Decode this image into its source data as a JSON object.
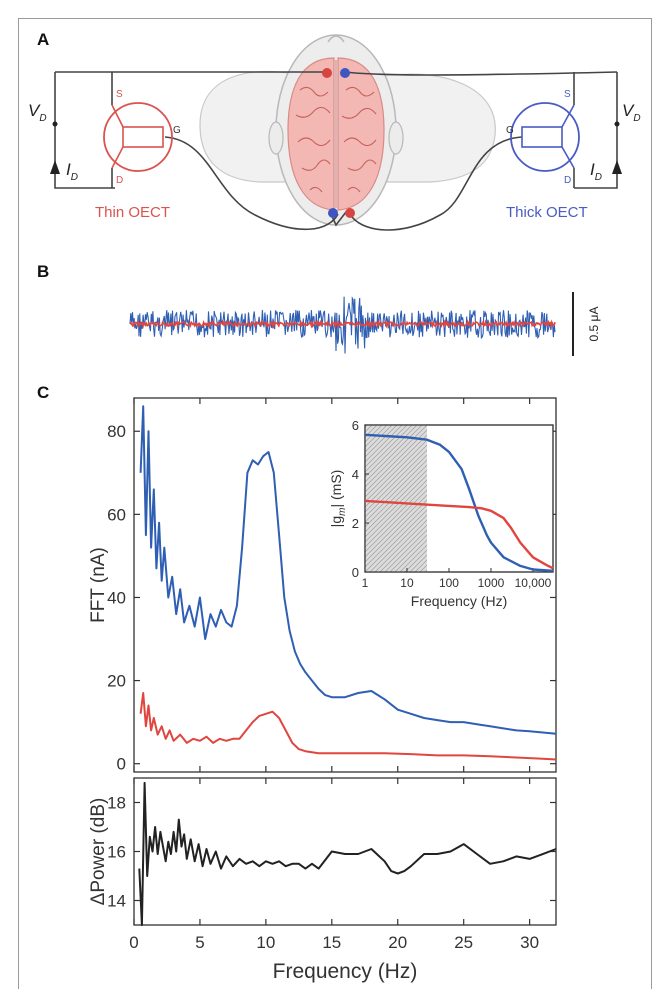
{
  "panels": {
    "a_label": "A",
    "b_label": "B",
    "c_label": "C"
  },
  "schematic": {
    "vd_label": "V",
    "vd_sub": "D",
    "id_label": "I",
    "id_sub": "D",
    "pin_s": "S",
    "pin_g": "G",
    "pin_d": "D",
    "thin_label": "Thin OECT",
    "thick_label": "Thick OECT",
    "colors": {
      "thin": "#d9534f",
      "thick": "#4a5bc4",
      "brain": "#f1b3b0",
      "wire": "#444444"
    }
  },
  "trace": {
    "scale_label": "0.5 μA",
    "colors": {
      "blue": "#2f5fb3",
      "red": "#e0463f"
    }
  },
  "chart_data": [
    {
      "type": "line",
      "xlabel": "",
      "ylabel": "FFT (nA)",
      "xlim": [
        0,
        32
      ],
      "ylim": [
        -2,
        88
      ],
      "yticks": [
        0,
        20,
        40,
        60,
        80
      ],
      "xticks": [
        0,
        5,
        10,
        15,
        20,
        25,
        30
      ],
      "series": [
        {
          "color": "#2f5fb3",
          "x": [
            0.5,
            0.7,
            0.9,
            1.1,
            1.3,
            1.5,
            1.7,
            1.9,
            2.1,
            2.3,
            2.6,
            2.9,
            3.2,
            3.5,
            3.8,
            4.2,
            4.6,
            5.0,
            5.4,
            5.8,
            6.2,
            6.6,
            7.0,
            7.4,
            7.8,
            8.2,
            8.6,
            9.0,
            9.4,
            9.8,
            10.2,
            10.6,
            11.0,
            11.4,
            11.8,
            12.2,
            12.6,
            13.0,
            13.5,
            14.0,
            14.5,
            15.0,
            16.0,
            17.0,
            18.0,
            19.0,
            20.0,
            21.0,
            22.0,
            23.0,
            24.0,
            25.0,
            26.0,
            27.0,
            28.0,
            29.0,
            30.0,
            31.0,
            32.0
          ],
          "y": [
            70,
            86,
            55,
            80,
            52,
            66,
            47,
            58,
            44,
            52,
            40,
            45,
            36,
            42,
            34,
            38,
            33,
            40,
            30,
            36,
            33,
            37,
            34,
            33,
            38,
            52,
            70,
            73,
            72,
            74,
            75,
            70,
            55,
            40,
            32,
            27,
            24,
            22,
            20,
            18,
            16.5,
            16,
            16,
            17,
            17.5,
            15.5,
            13,
            12,
            11,
            10.5,
            10,
            10,
            9.5,
            9,
            8.5,
            8,
            7.8,
            7.5,
            7.2
          ]
        },
        {
          "color": "#e0463f",
          "x": [
            0.5,
            0.7,
            0.9,
            1.1,
            1.3,
            1.5,
            1.8,
            2.1,
            2.4,
            2.7,
            3.0,
            3.5,
            4.0,
            4.5,
            5.0,
            5.5,
            6.0,
            6.5,
            7.0,
            7.5,
            8.0,
            8.5,
            9.0,
            9.5,
            10.0,
            10.5,
            11.0,
            11.5,
            12.0,
            12.5,
            13.0,
            14.0,
            15.0,
            17.0,
            19.0,
            21.0,
            23.0,
            25.0,
            27.0,
            29.0,
            31.0,
            32.0
          ],
          "y": [
            12,
            17,
            9,
            14,
            8,
            11,
            7,
            9,
            6,
            8,
            5.5,
            7,
            5,
            6,
            5.5,
            6.5,
            5,
            6,
            5.5,
            6,
            6,
            8,
            10,
            11.5,
            12,
            12.5,
            11,
            8,
            5,
            3.5,
            3,
            2.5,
            2.5,
            2.5,
            2.5,
            2.3,
            2,
            2,
            1.8,
            1.5,
            1.2,
            1
          ]
        }
      ],
      "inset": {
        "type": "line",
        "xlabel": "Frequency (Hz)",
        "ylabel_prefix": "|g",
        "ylabel_sub": "m",
        "ylabel_suffix": "| (mS)",
        "xscale": "log",
        "xlim": [
          1,
          30000
        ],
        "ylim": [
          0,
          6
        ],
        "xtick_labels": [
          "1",
          "10",
          "100",
          "1000",
          "10,000"
        ],
        "ytick_labels": [
          "0",
          "2",
          "4",
          "6"
        ],
        "shaded_region": [
          1,
          30
        ],
        "series": [
          {
            "color": "#2f5fb3",
            "x": [
              1,
              3,
              10,
              30,
              60,
              100,
              200,
              300,
              500,
              800,
              1000,
              2000,
              5000,
              10000,
              30000
            ],
            "y": [
              5.6,
              5.55,
              5.5,
              5.4,
              5.2,
              4.9,
              4.2,
              3.4,
              2.3,
              1.5,
              1.2,
              0.6,
              0.25,
              0.1,
              0.05
            ]
          },
          {
            "color": "#e0463f",
            "x": [
              1,
              10,
              100,
              300,
              600,
              1000,
              2000,
              3000,
              5000,
              10000,
              20000,
              30000
            ],
            "y": [
              2.9,
              2.8,
              2.7,
              2.65,
              2.6,
              2.5,
              2.2,
              1.8,
              1.2,
              0.6,
              0.3,
              0.15
            ]
          }
        ]
      }
    },
    {
      "type": "line",
      "xlabel": "Frequency (Hz)",
      "ylabel": "ΔPower (dB)",
      "xlim": [
        0,
        32
      ],
      "ylim": [
        13,
        19
      ],
      "yticks": [
        14,
        16,
        18
      ],
      "xticks": [
        0,
        5,
        10,
        15,
        20,
        25,
        30
      ],
      "series": [
        {
          "color": "#222222",
          "x": [
            0.4,
            0.6,
            0.8,
            1.0,
            1.2,
            1.4,
            1.6,
            1.8,
            2.0,
            2.2,
            2.4,
            2.6,
            2.8,
            3.0,
            3.2,
            3.4,
            3.6,
            3.8,
            4.0,
            4.3,
            4.6,
            4.9,
            5.2,
            5.5,
            5.8,
            6.2,
            6.6,
            7.0,
            7.5,
            8.0,
            8.5,
            9.0,
            9.5,
            10.0,
            10.5,
            11.0,
            11.5,
            12.0,
            12.5,
            13.0,
            13.5,
            14.0,
            15.0,
            16.0,
            17.0,
            18.0,
            19.0,
            19.5,
            20.0,
            20.5,
            21.0,
            22.0,
            23.0,
            24.0,
            25.0,
            26.0,
            27.0,
            28.0,
            29.0,
            30.0,
            31.0,
            32.0
          ],
          "y": [
            15.3,
            13.0,
            18.8,
            15.0,
            16.6,
            16.0,
            17.0,
            15.9,
            16.8,
            16.2,
            15.6,
            16.4,
            15.9,
            16.8,
            16.0,
            17.3,
            16.2,
            16.7,
            15.7,
            16.5,
            15.6,
            16.3,
            15.4,
            16.1,
            15.5,
            16.0,
            15.3,
            15.8,
            15.4,
            15.7,
            15.5,
            15.6,
            15.4,
            15.6,
            15.5,
            15.6,
            15.4,
            15.5,
            15.5,
            15.3,
            15.5,
            15.3,
            16.0,
            15.9,
            15.9,
            16.1,
            15.6,
            15.2,
            15.1,
            15.2,
            15.4,
            15.9,
            15.9,
            16.0,
            16.3,
            15.9,
            15.5,
            15.6,
            15.8,
            15.7,
            15.9,
            16.1
          ]
        }
      ]
    }
  ]
}
